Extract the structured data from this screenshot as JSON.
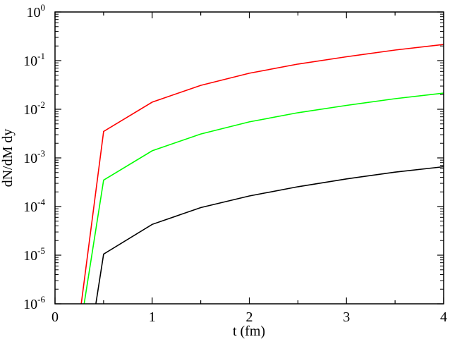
{
  "chart_data": {
    "type": "line",
    "title": "",
    "xlabel": "t (fm)",
    "ylabel": "dN/dM dy",
    "xlim": [
      0,
      4
    ],
    "ylim": [
      1e-06,
      1
    ],
    "yscale": "log",
    "grid": false,
    "legend": "none",
    "x_ticks": [
      "0",
      "1",
      "2",
      "3",
      "4"
    ],
    "y_ticks": [
      {
        "base": "10",
        "exp": "-6"
      },
      {
        "base": "10",
        "exp": "-5"
      },
      {
        "base": "10",
        "exp": "-4"
      },
      {
        "base": "10",
        "exp": "-3"
      },
      {
        "base": "10",
        "exp": "-2"
      },
      {
        "base": "10",
        "exp": "-1"
      },
      {
        "base": "10",
        "exp": "0"
      }
    ],
    "series": [
      {
        "color": "#ff0000",
        "points": [
          [
            0.27,
            1e-06
          ],
          [
            0.5,
            0.0035
          ],
          [
            1.0,
            0.014
          ],
          [
            1.5,
            0.031
          ],
          [
            2.0,
            0.055
          ],
          [
            2.5,
            0.085
          ],
          [
            3.0,
            0.12
          ],
          [
            3.5,
            0.165
          ],
          [
            4.0,
            0.215
          ]
        ]
      },
      {
        "color": "#00ff00",
        "points": [
          [
            0.3,
            1e-06
          ],
          [
            0.5,
            0.00035
          ],
          [
            1.0,
            0.0014
          ],
          [
            1.5,
            0.0031
          ],
          [
            2.0,
            0.0055
          ],
          [
            2.5,
            0.0085
          ],
          [
            3.0,
            0.012
          ],
          [
            3.5,
            0.0165
          ],
          [
            4.0,
            0.0215
          ]
        ]
      },
      {
        "color": "#000000",
        "points": [
          [
            0.42,
            1e-06
          ],
          [
            0.5,
            1.05e-05
          ],
          [
            1.0,
            4.3e-05
          ],
          [
            1.5,
            9.5e-05
          ],
          [
            2.0,
            0.000165
          ],
          [
            2.5,
            0.000255
          ],
          [
            3.0,
            0.00037
          ],
          [
            3.5,
            0.00051
          ],
          [
            4.0,
            0.00066
          ]
        ]
      }
    ]
  }
}
